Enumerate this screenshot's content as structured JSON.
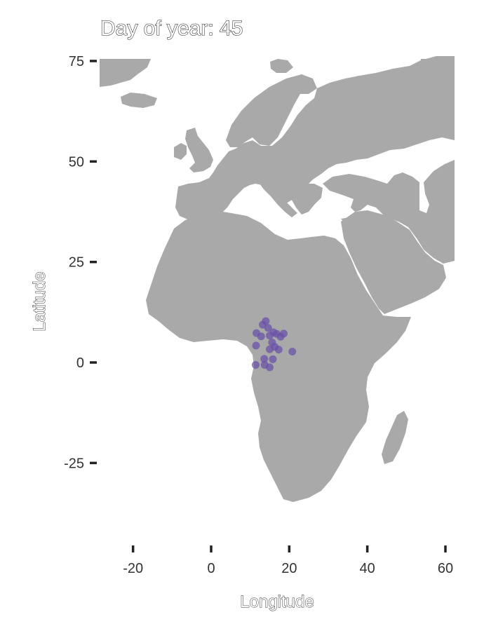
{
  "title": "Day of year: 45",
  "x_axis_title": "Longitude",
  "y_axis_title": "Latitude",
  "colors": {
    "land": "#a9a9a9",
    "points": "#6a4fa8",
    "background": "#ffffff"
  },
  "chart_data": {
    "type": "scatter",
    "xlim": [
      -22,
      62
    ],
    "ylim": [
      -44,
      77
    ],
    "x_ticks": [
      -20,
      0,
      20,
      40,
      60
    ],
    "y_ticks": [
      75,
      50,
      25,
      0,
      -25
    ],
    "x_tick_labels": [
      "-20",
      "0",
      "20",
      "40",
      "60"
    ],
    "y_tick_labels": [
      "75",
      "50",
      "25",
      "0",
      "-25"
    ],
    "points": [
      {
        "x": 14.0,
        "y": 10.3
      },
      {
        "x": 13.2,
        "y": 9.4
      },
      {
        "x": 14.6,
        "y": 8.6
      },
      {
        "x": 16.0,
        "y": 7.5
      },
      {
        "x": 16.8,
        "y": 7.1
      },
      {
        "x": 18.6,
        "y": 7.2
      },
      {
        "x": 11.6,
        "y": 7.3
      },
      {
        "x": 12.8,
        "y": 6.5
      },
      {
        "x": 15.0,
        "y": 6.7
      },
      {
        "x": 17.8,
        "y": 6.4
      },
      {
        "x": 15.6,
        "y": 5.0
      },
      {
        "x": 11.5,
        "y": 4.2
      },
      {
        "x": 15.0,
        "y": 3.3
      },
      {
        "x": 16.3,
        "y": 3.9
      },
      {
        "x": 17.3,
        "y": 3.2
      },
      {
        "x": 20.8,
        "y": 2.7
      },
      {
        "x": 13.6,
        "y": 0.9
      },
      {
        "x": 15.8,
        "y": 0.8
      },
      {
        "x": 11.4,
        "y": -0.6
      },
      {
        "x": 13.7,
        "y": -0.6
      },
      {
        "x": 15.0,
        "y": -1.2
      }
    ]
  }
}
